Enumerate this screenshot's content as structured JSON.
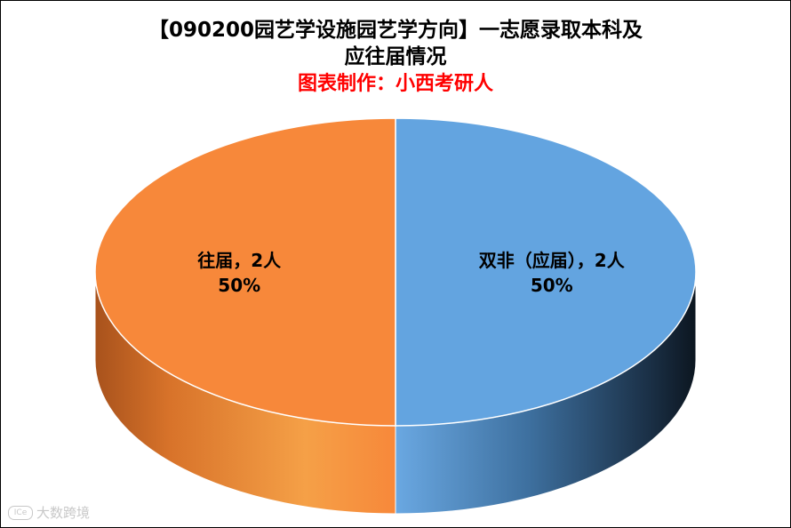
{
  "chart_data": {
    "type": "pie",
    "title_line1": "【090200园艺学设施园艺学方向】一志愿录取本科及",
    "title_line2": "应往届情况",
    "subtitle": "图表制作：小西考研人",
    "slices": [
      {
        "name": "双非（应届）",
        "value": 2,
        "percent": "50%",
        "label": "双非（应届），2人",
        "color": "#63a4e0"
      },
      {
        "name": "往届",
        "value": 2,
        "percent": "50%",
        "label": "往届，2人",
        "color": "#f7883a"
      }
    ]
  },
  "watermark": {
    "text": "大数跨境"
  }
}
